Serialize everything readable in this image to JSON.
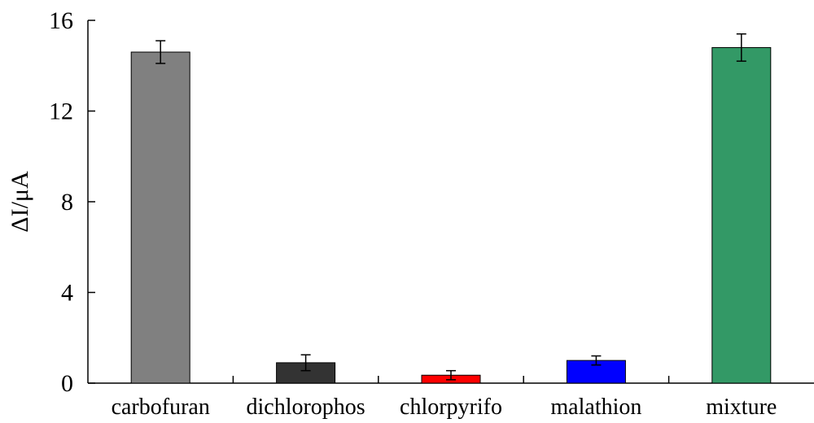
{
  "chart_data": {
    "type": "bar",
    "title": "",
    "xlabel": "",
    "ylabel": "ΔI/μA",
    "ylim": [
      0,
      16
    ],
    "yticks": [
      0,
      4,
      8,
      12,
      16
    ],
    "categories": [
      "carbofuran",
      "dichlorophos",
      "chlorpyrifo",
      "malathion",
      "mixture"
    ],
    "values": [
      14.6,
      0.9,
      0.35,
      1.0,
      14.8
    ],
    "errors": [
      0.5,
      0.35,
      0.2,
      0.2,
      0.6
    ],
    "colors": [
      "#808080",
      "#333333",
      "#ff0000",
      "#0000ff",
      "#339966"
    ],
    "grid": false,
    "legend": "none"
  }
}
